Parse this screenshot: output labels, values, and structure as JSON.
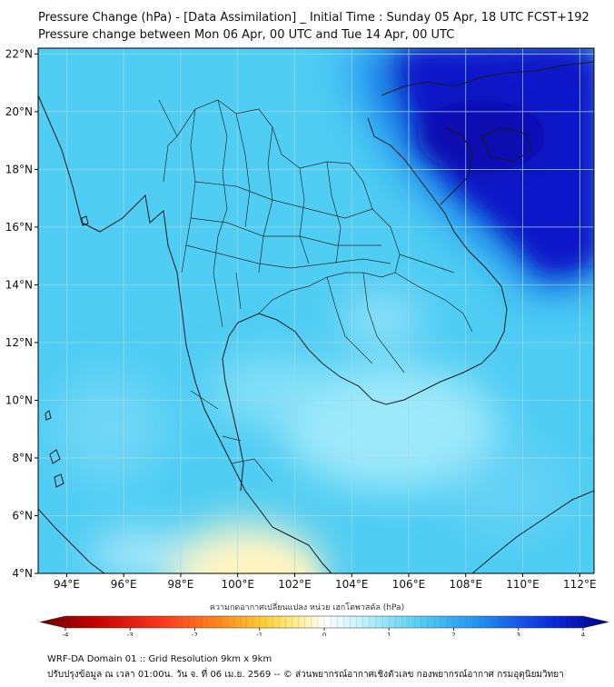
{
  "header": {
    "title": "Pressure Change (hPa) - [Data Assimilation] _ Initial Time : Sunday 05 Apr, 18 UTC FCST+192",
    "subtitle": "Pressure change between Mon 06 Apr, 00 UTC and Tue 14 Apr, 00 UTC"
  },
  "map": {
    "lat_labels": [
      "22°N",
      "20°N",
      "18°N",
      "16°N",
      "14°N",
      "12°N",
      "10°N",
      "8°N",
      "6°N",
      "4°N"
    ],
    "lat_values": [
      22,
      20,
      18,
      16,
      14,
      12,
      10,
      8,
      6,
      4
    ],
    "lon_labels": [
      "94°E",
      "96°E",
      "98°E",
      "100°E",
      "102°E",
      "104°E",
      "106°E",
      "108°E",
      "110°E",
      "112°E"
    ],
    "lon_values": [
      94,
      96,
      98,
      100,
      102,
      104,
      106,
      108,
      110,
      112
    ],
    "lon_range": [
      93,
      112.5
    ],
    "lat_range": [
      4,
      22.2
    ],
    "field_description_colors": {
      "base": "#4fcdf3",
      "strong_rise": "#0a14c8",
      "rise": "#1e8ff0",
      "weak_rise": "#a6ecfb",
      "near_zero": "#fdf6c8"
    }
  },
  "colorbar": {
    "title": "ความกดอากาศเปลี่ยนแปลง หน่วย เฮกโตพาสคัล (hPa)",
    "ticks": [
      "-4",
      "-3",
      "-2",
      "-1",
      "0",
      "1",
      "2",
      "3",
      "4"
    ],
    "tick_values": [
      -4,
      -3,
      -2,
      -1,
      0,
      1,
      2,
      3,
      4
    ],
    "range": [
      -4,
      4
    ],
    "colors": [
      "#6b0000",
      "#c80000",
      "#ff3a1e",
      "#ff8c1e",
      "#ffd23c",
      "#fff0a0",
      "#ffffff",
      "#c8f4ff",
      "#5ad2f5",
      "#1e8cf0",
      "#0a28dc",
      "#000080"
    ]
  },
  "footer": {
    "line1": "WRF-DA Domain 01 :: Grid Resolution 9km x 9km",
    "line2": "ปรับปรุงข้อมูล ณ เวลา 01:00น. วัน จ. ที่ 06 เม.ย. 2569 -- © ส่วนพยากรณ์อากาศเชิงตัวเลข กองพยากรณ์อากาศ กรมอุตุนิยมวิทยา"
  }
}
